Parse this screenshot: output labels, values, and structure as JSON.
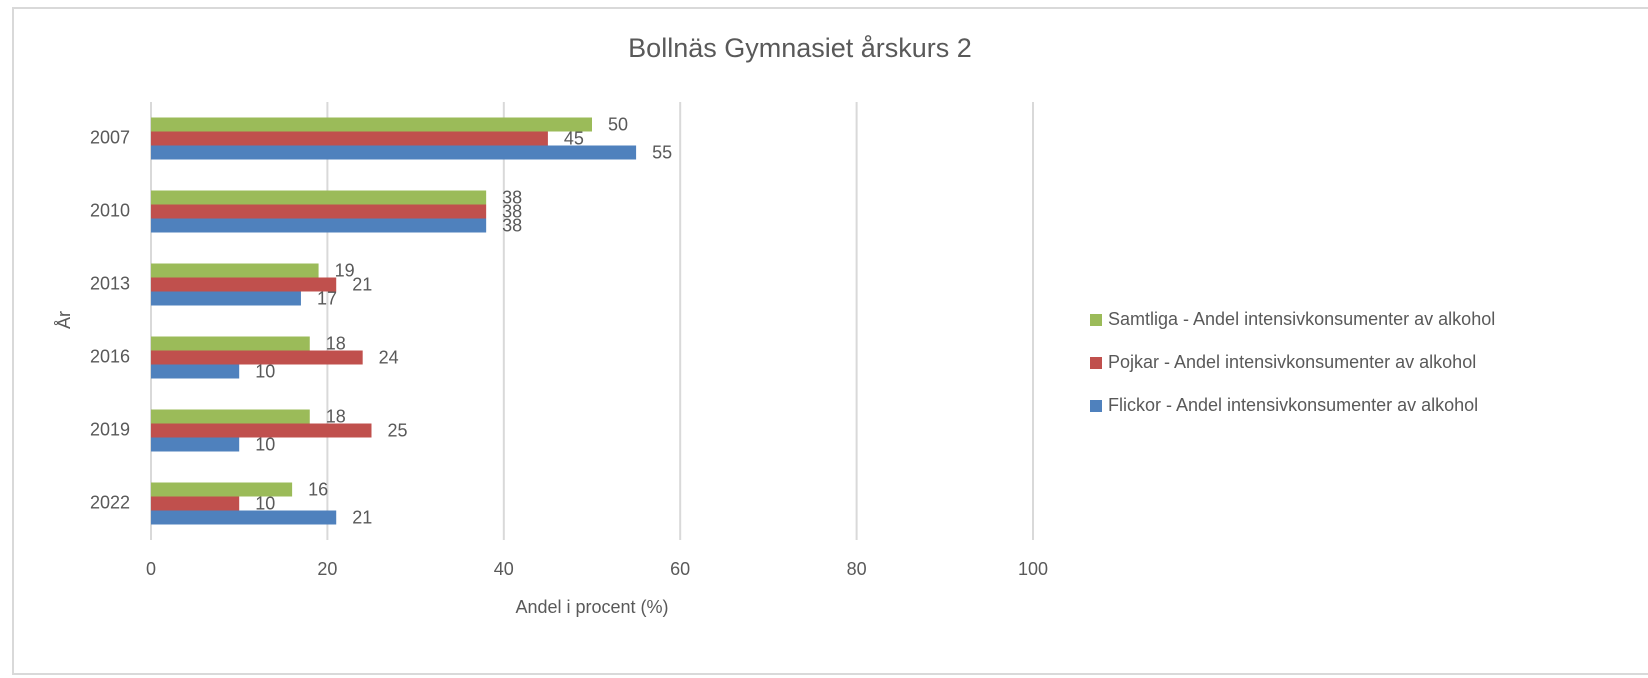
{
  "chart_data": {
    "type": "bar",
    "orientation": "horizontal",
    "title": "Bollnäs Gymnasiet årskurs 2",
    "x_label": "Andel i procent (%)",
    "y_label": "År",
    "categories": [
      "2007",
      "2010",
      "2013",
      "2016",
      "2019",
      "2022"
    ],
    "series": [
      {
        "name": "Samtliga - Andel intensivkonsumenter av alkohol",
        "color": "#9bbb59",
        "values": [
          50,
          38,
          19,
          18,
          18,
          16
        ]
      },
      {
        "name": "Pojkar - Andel intensivkonsumenter av alkohol",
        "color": "#c0504d",
        "values": [
          45,
          38,
          21,
          24,
          25,
          10
        ]
      },
      {
        "name": "Flickor - Andel intensivkonsumenter av alkohol",
        "color": "#4f81bd",
        "values": [
          55,
          38,
          17,
          10,
          10,
          21
        ]
      }
    ],
    "xlim": [
      0,
      100
    ],
    "xticks": [
      0,
      20,
      40,
      60,
      80,
      100
    ],
    "grid": true,
    "legend": "right"
  }
}
